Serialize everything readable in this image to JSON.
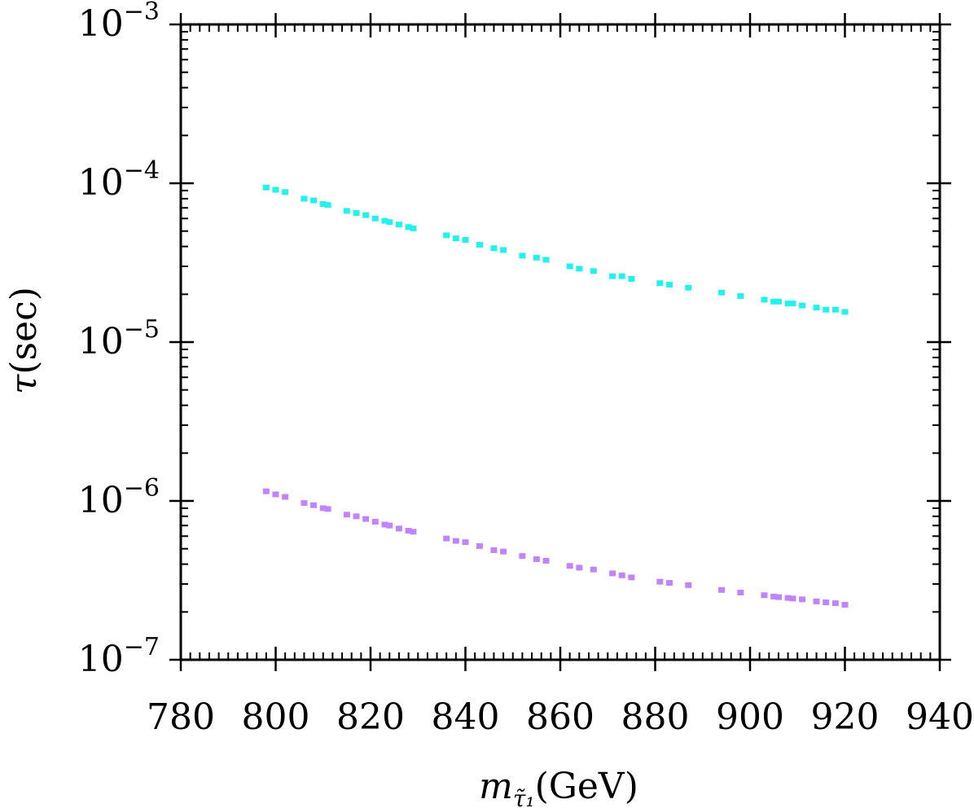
{
  "chart_data": {
    "type": "scatter",
    "title": "",
    "xlabel": {
      "main": "m",
      "sub": "τ̃₁",
      "unit": "(GeV)"
    },
    "ylabel": {
      "main": "τ",
      "unit": "(sec)"
    },
    "xlim": [
      780,
      940
    ],
    "ylim": [
      1e-07,
      0.001
    ],
    "yscale": "log",
    "grid": false,
    "legend": "none",
    "x_ticks": [
      "780",
      "800",
      "820",
      "840",
      "860",
      "880",
      "900",
      "920",
      "940"
    ],
    "y_ticks": [
      {
        "base": "10",
        "exp": "−3",
        "value": 0.001
      },
      {
        "base": "10",
        "exp": "−4",
        "value": 0.0001
      },
      {
        "base": "10",
        "exp": "−5",
        "value": 1e-05
      },
      {
        "base": "10",
        "exp": "−6",
        "value": 1e-06
      },
      {
        "base": "10",
        "exp": "−7",
        "value": 1e-07
      }
    ],
    "series": [
      {
        "color": "#22f2ee",
        "x": [
          798,
          800,
          802,
          806,
          808,
          810,
          811,
          815,
          817,
          819,
          821,
          823,
          824,
          826,
          828,
          829,
          836,
          838,
          840,
          843,
          846,
          848,
          852,
          855,
          857,
          862,
          864,
          867,
          871,
          873,
          875,
          881,
          883,
          887,
          894,
          898,
          903,
          905,
          906,
          908,
          909,
          911,
          914,
          916,
          918,
          920
        ],
        "y": [
          9.4e-05,
          9.1e-05,
          8.8e-05,
          8e-05,
          7.8e-05,
          7.4e-05,
          7.3e-05,
          6.7e-05,
          6.5e-05,
          6.3e-05,
          6e-05,
          5.8e-05,
          5.7e-05,
          5.5e-05,
          5.3e-05,
          5.2e-05,
          4.7e-05,
          4.5e-05,
          4.4e-05,
          4.1e-05,
          3.9e-05,
          3.8e-05,
          3.5e-05,
          3.4e-05,
          3.3e-05,
          3e-05,
          2.9e-05,
          2.8e-05,
          2.6e-05,
          2.6e-05,
          2.5e-05,
          2.35e-05,
          2.3e-05,
          2.2e-05,
          2.05e-05,
          1.95e-05,
          1.85e-05,
          1.8e-05,
          1.8e-05,
          1.75e-05,
          1.75e-05,
          1.7e-05,
          1.65e-05,
          1.6e-05,
          1.6e-05,
          1.55e-05
        ]
      },
      {
        "color": "#c084fc",
        "x": [
          798,
          800,
          802,
          806,
          808,
          810,
          811,
          815,
          817,
          819,
          821,
          823,
          824,
          826,
          828,
          829,
          836,
          838,
          840,
          843,
          846,
          848,
          852,
          855,
          857,
          862,
          864,
          867,
          871,
          873,
          875,
          881,
          883,
          887,
          894,
          898,
          903,
          905,
          906,
          908,
          909,
          911,
          914,
          916,
          918,
          920
        ],
        "y": [
          1.15e-06,
          1.1e-06,
          1.06e-06,
          9.7e-07,
          9.4e-07,
          9e-07,
          8.9e-07,
          8.2e-07,
          8e-07,
          7.7e-07,
          7.4e-07,
          7.1e-07,
          7e-07,
          6.7e-07,
          6.5e-07,
          6.4e-07,
          5.8e-07,
          5.6e-07,
          5.5e-07,
          5.2e-07,
          4.9e-07,
          4.8e-07,
          4.5e-07,
          4.3e-07,
          4.2e-07,
          3.9e-07,
          3.8e-07,
          3.7e-07,
          3.5e-07,
          3.4e-07,
          3.3e-07,
          3.1e-07,
          3.05e-07,
          2.95e-07,
          2.75e-07,
          2.65e-07,
          2.55e-07,
          2.5e-07,
          2.48e-07,
          2.45e-07,
          2.43e-07,
          2.4e-07,
          2.33e-07,
          2.3e-07,
          2.27e-07,
          2.22e-07
        ]
      }
    ]
  }
}
